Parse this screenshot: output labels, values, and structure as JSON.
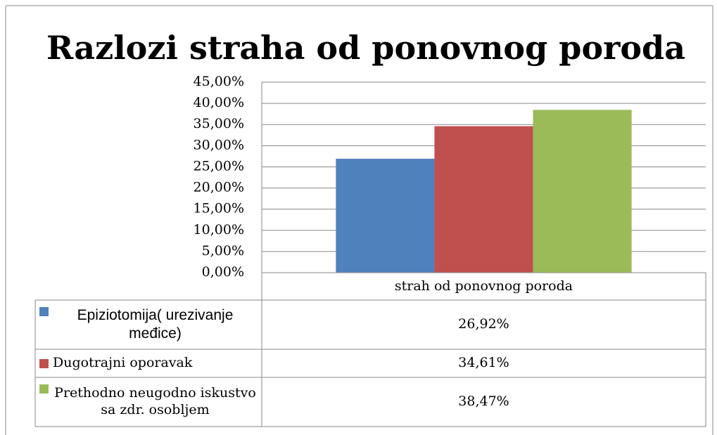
{
  "chart_data": {
    "type": "bar",
    "title": "Razlozi straha od ponovnog poroda",
    "categories": [
      "strah od ponovnog poroda"
    ],
    "series": [
      {
        "name": "Epiziotomija( urezivanje međice)",
        "color": "#4f81bd",
        "values": [
          26.92
        ],
        "value_labels": [
          "26,92%"
        ]
      },
      {
        "name": "Dugotrajni oporavak",
        "color": "#c0504d",
        "values": [
          34.61
        ],
        "value_labels": [
          "34,61%"
        ]
      },
      {
        "name": "Prethodno neugodno iskustvo sa zdr. osobljem",
        "color": "#9bbb59",
        "values": [
          38.47
        ],
        "value_labels": [
          "38,47%"
        ]
      }
    ],
    "ylim": [
      0,
      45
    ],
    "yticks": [
      {
        "value": 0,
        "label": "0,00%"
      },
      {
        "value": 5,
        "label": "5,00%"
      },
      {
        "value": 10,
        "label": "10,00%"
      },
      {
        "value": 15,
        "label": "15,00%"
      },
      {
        "value": 20,
        "label": "20,00%"
      },
      {
        "value": 25,
        "label": "25,00%"
      },
      {
        "value": 30,
        "label": "30,00%"
      },
      {
        "value": 35,
        "label": "35,00%"
      },
      {
        "value": 40,
        "label": "40,00%"
      },
      {
        "value": 45,
        "label": "45,00%"
      }
    ],
    "grid": true,
    "legend": "table"
  }
}
